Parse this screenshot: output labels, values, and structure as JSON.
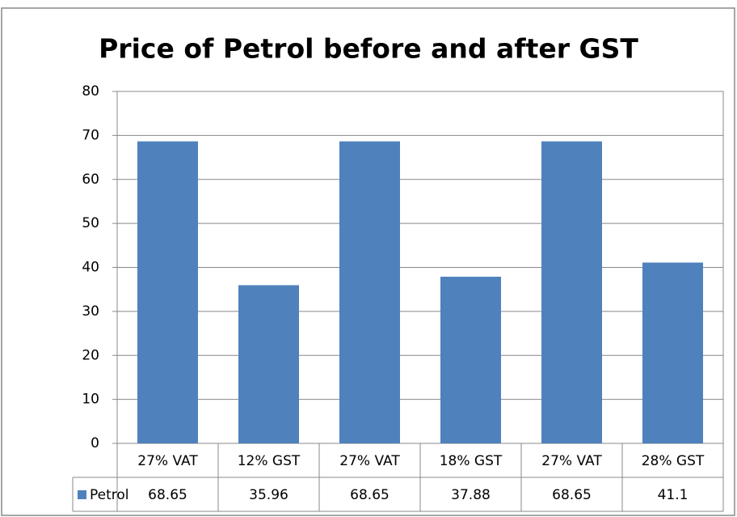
{
  "chart_data": {
    "type": "bar",
    "title": "Price of Petrol before and after GST",
    "categories": [
      "27% VAT",
      "12% GST",
      "27% VAT",
      "18% GST",
      "27% VAT",
      "28% GST"
    ],
    "series": [
      {
        "name": "Petrol",
        "color": "#4f81bd",
        "values": [
          68.65,
          35.96,
          68.65,
          37.88,
          68.65,
          41.1
        ]
      }
    ],
    "ylim": [
      0,
      80
    ],
    "yticks": [
      0,
      10,
      20,
      30,
      40,
      50,
      60,
      70,
      80
    ],
    "grid": true
  }
}
